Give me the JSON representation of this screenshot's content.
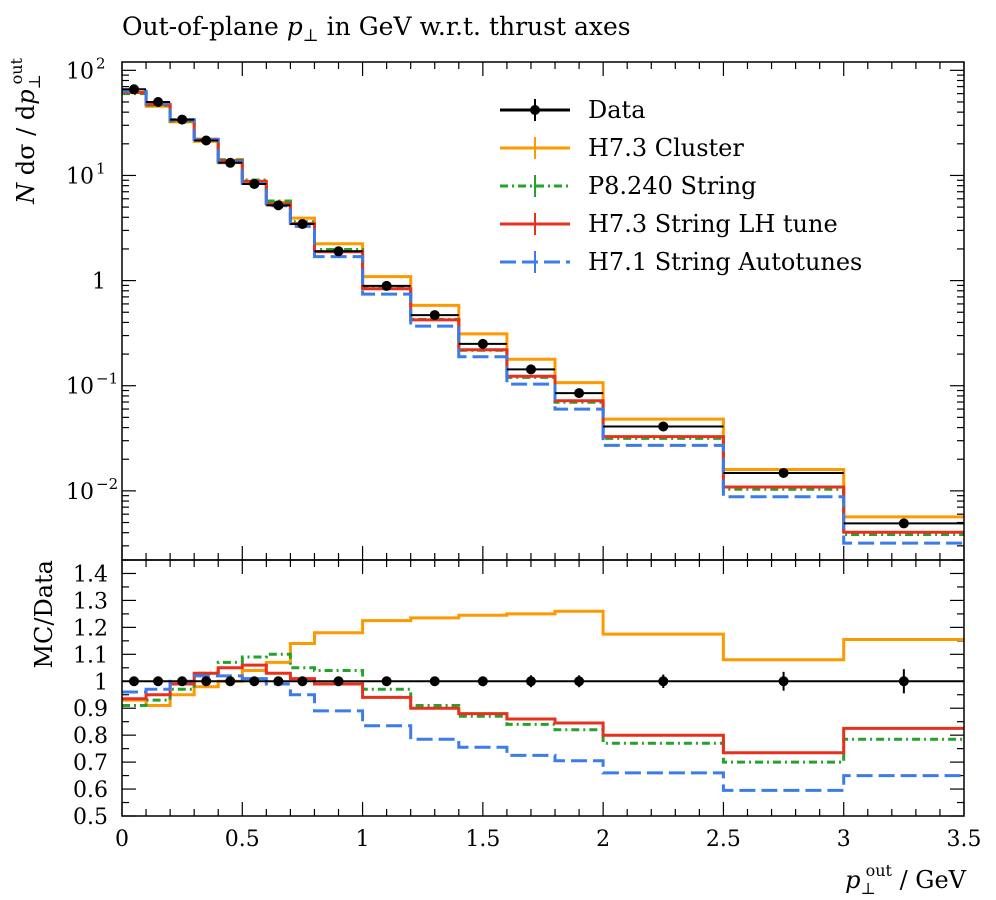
{
  "chart_data": {
    "type": "line",
    "title": "Out-of-plane p⊥ in GeV w.r.t. thrust axes",
    "xlabel": "p⊥out / GeV",
    "ylabel": "N dσ / dp⊥out",
    "ratio_ylabel": "MC/Data",
    "yscale": "log",
    "xlim": [
      0,
      3.5
    ],
    "ylim": [
      0.0022,
      120
    ],
    "ratio_ylim": [
      0.5,
      1.45
    ],
    "x_ticks": [
      "0",
      "0.5",
      "1",
      "1.5",
      "2",
      "2.5",
      "3",
      "3.5"
    ],
    "y_ticks": [
      {
        "base": "10",
        "exp": "2",
        "value": 100
      },
      {
        "base": "10",
        "exp": "1",
        "value": 10
      },
      {
        "base": "1",
        "exp": "",
        "value": 1
      },
      {
        "base": "10",
        "exp": "−1",
        "value": 0.1
      },
      {
        "base": "10",
        "exp": "−2",
        "value": 0.01
      }
    ],
    "ratio_y_ticks": [
      "1.4",
      "1.3",
      "1.2",
      "1.1",
      "1",
      "0.9",
      "0.8",
      "0.7",
      "0.6",
      "0.5"
    ],
    "bin_edges": [
      0,
      0.1,
      0.2,
      0.3,
      0.4,
      0.5,
      0.6,
      0.7,
      0.8,
      1.0,
      1.2,
      1.4,
      1.6,
      1.8,
      2.0,
      2.5,
      3.0,
      3.5
    ],
    "legend_position": "top-right",
    "data": {
      "name": "Data",
      "color": "#000000",
      "x": [
        0.05,
        0.15,
        0.25,
        0.35,
        0.45,
        0.55,
        0.65,
        0.75,
        0.9,
        1.1,
        1.3,
        1.5,
        1.7,
        1.9,
        2.25,
        2.75,
        3.25
      ],
      "y": [
        66,
        50,
        34,
        21.5,
        13.2,
        8.3,
        5.2,
        3.45,
        1.9,
        0.89,
        0.47,
        0.25,
        0.143,
        0.085,
        0.041,
        0.0148,
        0.0049
      ],
      "ratio_err": [
        0.015,
        0.012,
        0.012,
        0.012,
        0.012,
        0.012,
        0.012,
        0.012,
        0.012,
        0.012,
        0.015,
        0.018,
        0.022,
        0.022,
        0.025,
        0.035,
        0.045
      ]
    },
    "series": [
      {
        "name": "H7.3 Cluster",
        "color": "#ff9900",
        "dash": "",
        "ratios": [
          0.93,
          0.91,
          0.95,
          0.98,
          1.0,
          1.04,
          1.07,
          1.14,
          1.18,
          1.225,
          1.235,
          1.245,
          1.25,
          1.26,
          1.175,
          1.08,
          1.155
        ]
      },
      {
        "name": "P8.240 String",
        "color": "#24a22b",
        "dash": "8,4,2,4",
        "ratios": [
          0.91,
          0.93,
          0.97,
          1.03,
          1.07,
          1.09,
          1.1,
          1.05,
          1.04,
          0.97,
          0.91,
          0.87,
          0.84,
          0.82,
          0.77,
          0.7,
          0.785
        ]
      },
      {
        "name": "H7.3 String LH tune",
        "color": "#e8301c",
        "dash": "",
        "ratios": [
          0.935,
          0.95,
          0.99,
          1.03,
          1.05,
          1.06,
          1.03,
          1.01,
          0.99,
          0.94,
          0.9,
          0.88,
          0.86,
          0.845,
          0.8,
          0.735,
          0.825
        ]
      },
      {
        "name": "H7.1 String Autotunes",
        "color": "#3b7bea",
        "dash": "16,6",
        "ratios": [
          0.96,
          0.97,
          1.0,
          1.02,
          1.02,
          1.01,
          0.99,
          0.95,
          0.89,
          0.835,
          0.785,
          0.755,
          0.725,
          0.705,
          0.66,
          0.595,
          0.65
        ]
      }
    ]
  }
}
